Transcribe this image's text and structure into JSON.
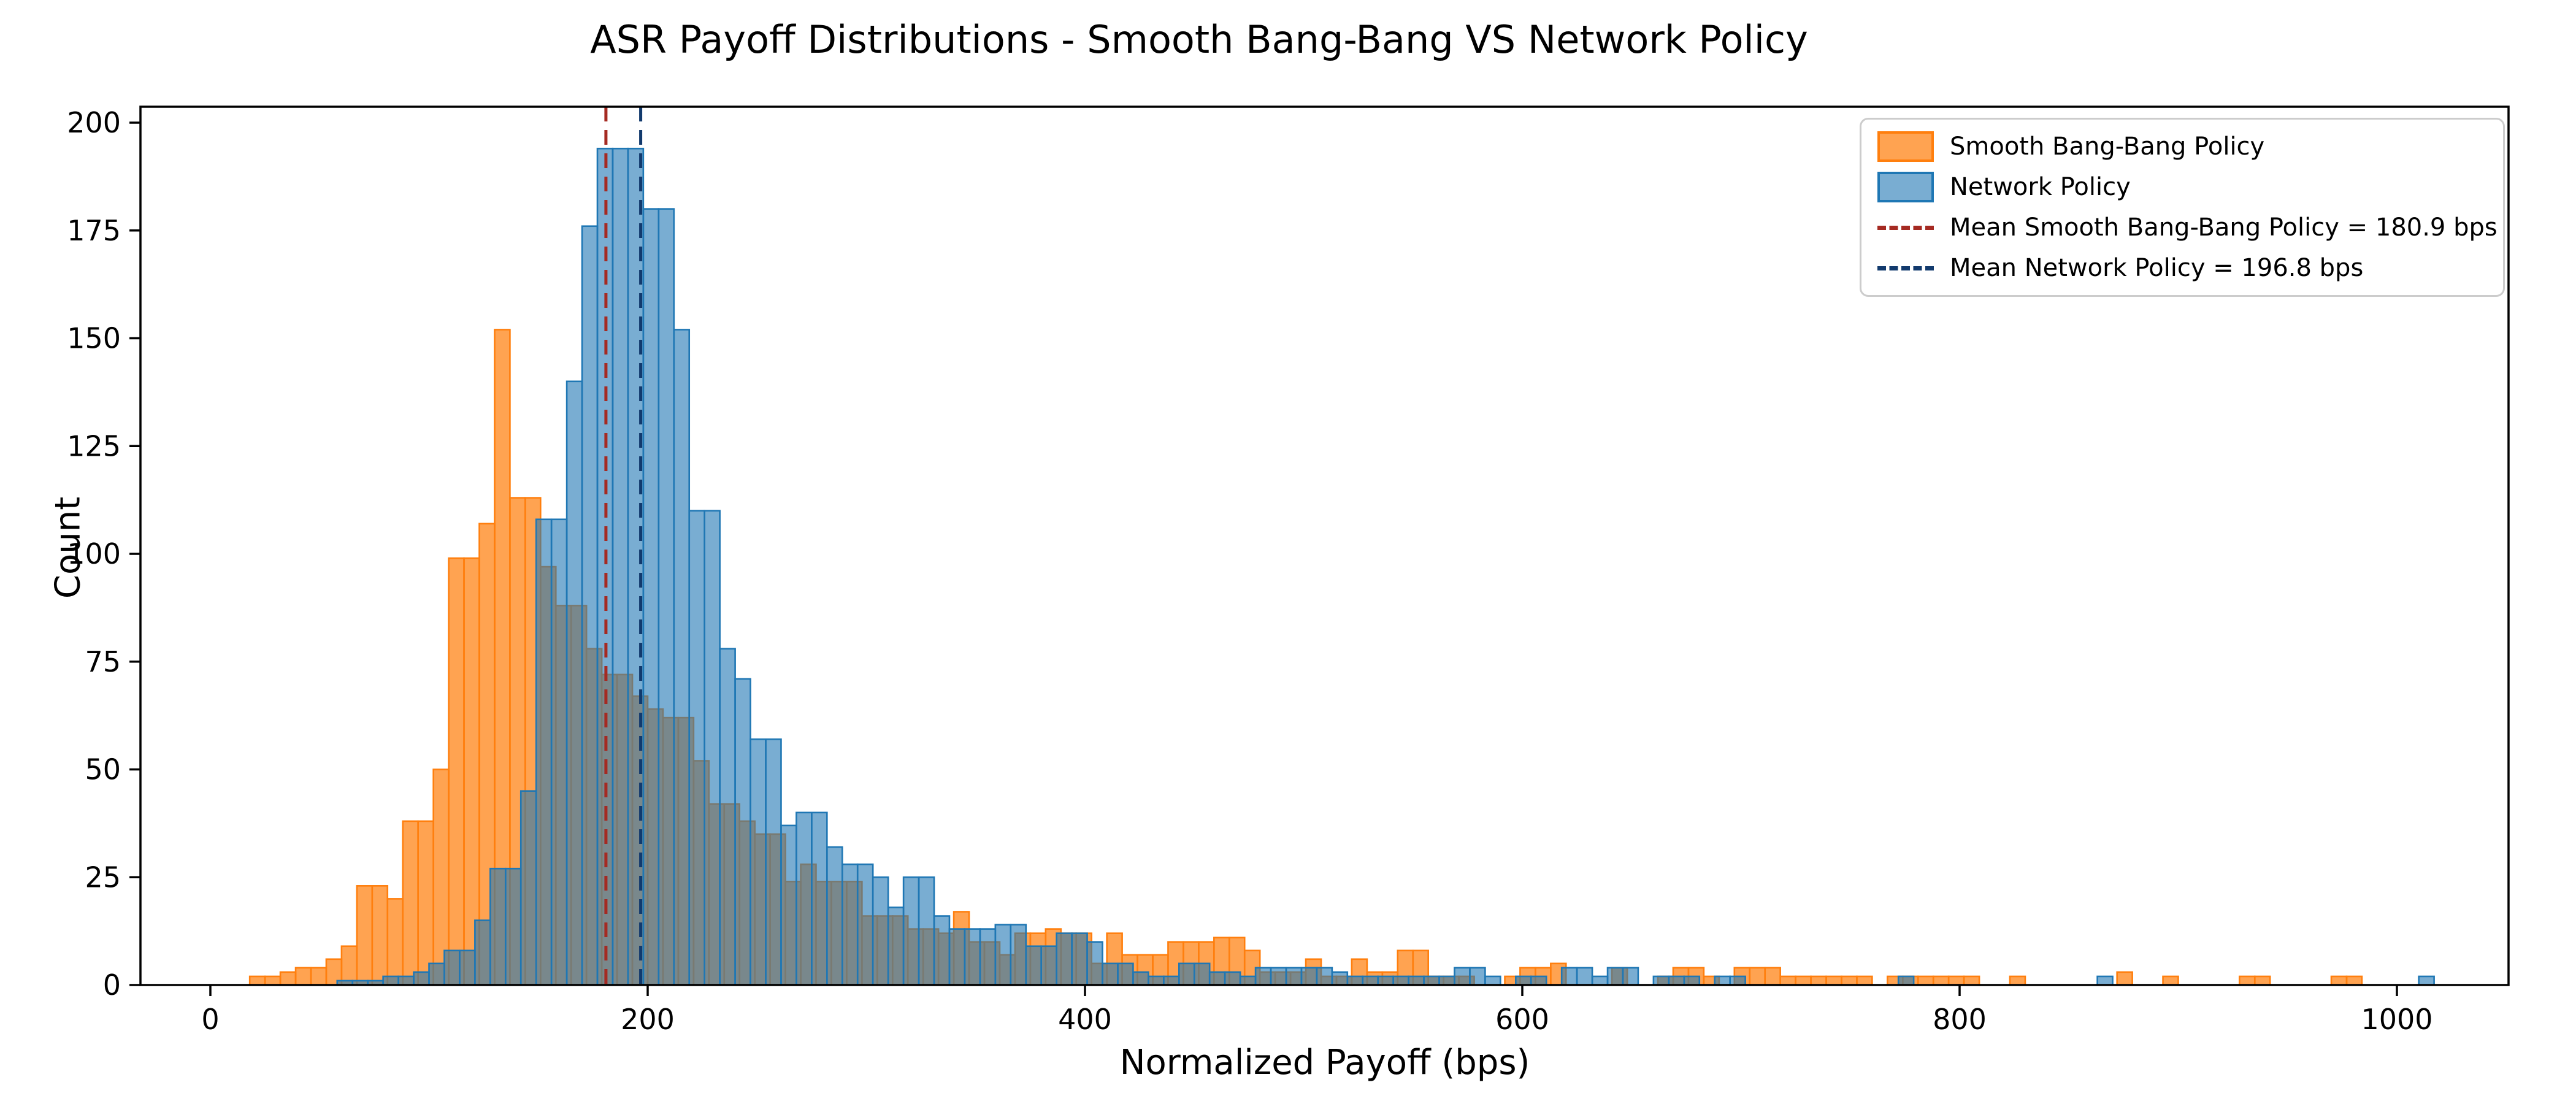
{
  "title": "ASR Payoff Distributions - Smooth Bang-Bang VS Network Policy",
  "chart_data": {
    "type": "bar",
    "subtype": "overlapping_histogram",
    "title": "ASR Payoff Distributions - Smooth Bang-Bang VS Network Policy",
    "xlabel": "Normalized Payoff (bps)",
    "ylabel": "Count",
    "xlim": [
      -32,
      1051
    ],
    "ylim": [
      0,
      203.7
    ],
    "xticks": [
      0,
      200,
      400,
      600,
      800,
      1000
    ],
    "yticks": [
      0,
      25,
      50,
      75,
      100,
      125,
      150,
      175,
      200
    ],
    "grid": false,
    "legend_position": "upper right",
    "background": "#ffffff",
    "series": [
      {
        "name": "Smooth Bang-Bang Policy",
        "color": "#ff7f0e",
        "fill_alpha": 0.72,
        "bin_start": 18,
        "bin_width": 7,
        "counts": [
          2,
          2,
          3,
          4,
          4,
          6,
          9,
          23,
          23,
          20,
          38,
          38,
          50,
          99,
          99,
          107,
          152,
          113,
          113,
          97,
          88,
          88,
          78,
          72,
          72,
          67,
          64,
          62,
          62,
          52,
          42,
          42,
          38,
          35,
          35,
          24,
          28,
          24,
          24,
          24,
          16,
          16,
          16,
          13,
          13,
          12,
          17,
          10,
          10,
          7,
          12,
          12,
          13,
          12,
          12,
          5,
          12,
          7,
          7,
          7,
          10,
          10,
          10,
          11,
          11,
          8,
          3,
          3,
          3,
          6,
          2,
          2,
          6,
          3,
          3,
          8,
          8,
          2,
          2,
          2,
          0,
          0,
          2,
          4,
          4,
          5,
          0,
          0,
          0,
          4,
          0,
          0,
          2,
          4,
          4,
          2,
          0,
          4,
          4,
          4,
          2,
          2,
          2,
          2,
          2,
          2,
          0,
          2,
          2,
          2,
          2,
          2,
          2,
          0,
          0,
          2,
          0,
          0,
          0,
          0,
          0,
          0,
          3,
          0,
          0,
          2,
          0,
          0,
          0,
          0,
          2,
          2,
          0,
          0,
          0,
          0,
          2,
          2
        ]
      },
      {
        "name": "Network Policy",
        "color": "#1f77b4",
        "fill_alpha": 0.6,
        "bin_start": 58,
        "bin_width": 7,
        "counts": [
          1,
          1,
          1,
          2,
          2,
          3,
          5,
          8,
          8,
          15,
          27,
          27,
          45,
          108,
          108,
          140,
          176,
          194,
          194,
          194,
          180,
          180,
          152,
          110,
          110,
          78,
          71,
          57,
          57,
          37,
          40,
          40,
          32,
          28,
          28,
          25,
          18,
          25,
          25,
          16,
          13,
          13,
          13,
          14,
          14,
          9,
          9,
          12,
          12,
          10,
          5,
          5,
          3,
          2,
          2,
          5,
          5,
          3,
          3,
          2,
          4,
          4,
          4,
          4,
          4,
          3,
          2,
          2,
          2,
          2,
          2,
          2,
          2,
          4,
          4,
          2,
          0,
          2,
          2,
          0,
          4,
          4,
          2,
          4,
          4,
          0,
          2,
          2,
          2,
          0,
          2,
          2,
          0,
          0,
          0,
          0,
          0,
          0,
          0,
          0,
          0,
          0,
          2,
          0,
          0,
          0,
          0,
          0,
          0,
          0,
          0,
          0,
          0,
          0,
          0,
          2,
          0,
          0,
          0,
          0,
          0,
          0,
          0,
          0,
          0,
          0,
          0,
          0,
          0,
          0,
          0,
          0,
          0,
          0,
          0,
          0,
          2,
          0
        ]
      }
    ],
    "mean_lines": [
      {
        "label": "Mean Smooth Bang-Bang Policy = 180.9 bps",
        "value": 180.9,
        "color": "#a52a22"
      },
      {
        "label": "Mean Network Policy = 196.8 bps",
        "value": 196.8,
        "color": "#123a6d"
      }
    ]
  }
}
